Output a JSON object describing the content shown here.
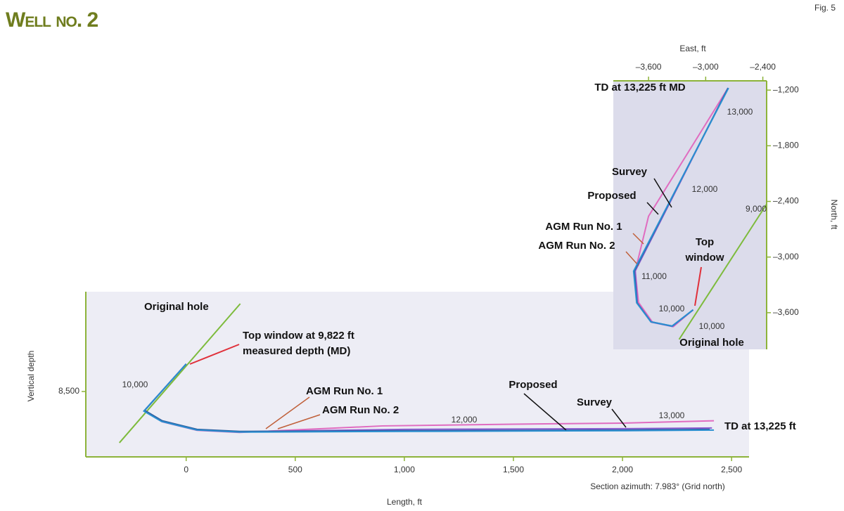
{
  "title": "Well no. 2",
  "figure_label": "Fig. 5",
  "chart_data": [
    {
      "type": "line",
      "x_label": "Length, ft",
      "y_label": "Vertical depth",
      "note": "Section azimuth: 7.983° (Grid north)",
      "x_axis_position": "bottom",
      "y_axis_position": "left",
      "xlim": [
        -460,
        2580
      ],
      "ylim": [
        8690,
        8210
      ],
      "xticks": [
        0,
        500,
        {
          "value": 1000,
          "label": "1,000"
        },
        {
          "value": 1500,
          "label": "1,500"
        },
        {
          "value": 2000,
          "label": "2,000"
        },
        {
          "value": 2500,
          "label": "2,500"
        }
      ],
      "yticks": [
        {
          "value": 8500,
          "label": "8,500"
        }
      ],
      "series": [
        {
          "name": "Original hole",
          "color": "#7dbb3c",
          "x": [
            -306,
            248
          ],
          "values": [
            8649,
            8245
          ]
        },
        {
          "name": "AGM Run No. 1",
          "color": "#e06cc0",
          "x": [
            0,
            -192,
            -110,
            50,
            245,
            900,
            1500,
            2000,
            2419
          ],
          "values": [
            8420,
            8556,
            8588,
            8613,
            8619,
            8600,
            8595,
            8592,
            8585
          ]
        },
        {
          "name": "AGM Run No. 2",
          "color": "#8a5bd0",
          "x": [
            0,
            -191,
            -110,
            50,
            245,
            1000,
            2000,
            2410
          ],
          "values": [
            8420,
            8555,
            8586,
            8611,
            8617,
            8610,
            8608,
            8606
          ]
        },
        {
          "name": "Proposed",
          "color": "#2f5fa0",
          "x": [
            0,
            -190,
            -110,
            50,
            245,
            1000,
            2000,
            2400
          ],
          "values": [
            8420,
            8555,
            8585,
            8610,
            8616,
            8614,
            8612,
            8610
          ]
        },
        {
          "name": "Survey",
          "color": "#2a8fd0",
          "x": [
            0,
            -194,
            -113,
            48,
            242,
            1000,
            2000,
            2419
          ],
          "values": [
            8420,
            8557,
            8587,
            8612,
            8618,
            8616,
            8614,
            8612
          ]
        }
      ],
      "annotations": [
        "Top window at 9,822 ft",
        "measured depth (MD)",
        "TD at 13,225 ft",
        "10,000",
        "12,000",
        "13,000"
      ]
    },
    {
      "type": "line",
      "x_label": "East, ft",
      "y_label": "North, ft",
      "x_axis_position": "top",
      "y_axis_position": "right",
      "xlim": [
        -3970,
        -2360
      ],
      "ylim": [
        -3995,
        -1100
      ],
      "xticks": [
        {
          "value": -3600,
          "label": "–3,600"
        },
        {
          "value": -3000,
          "label": "–3,000"
        },
        {
          "value": -2400,
          "label": "–2,400"
        }
      ],
      "yticks": [
        {
          "value": -1200,
          "label": "–1,200"
        },
        {
          "value": -1800,
          "label": "–1,800"
        },
        {
          "value": -2400,
          "label": "–2,400"
        },
        {
          "value": -3000,
          "label": "–3,000"
        },
        {
          "value": -3600,
          "label": "–3,600"
        }
      ],
      "series": [
        {
          "name": "Original hole",
          "color": "#7dbb3c",
          "x": [
            -3279,
            -2360
          ],
          "values": [
            -3888,
            -2430
          ]
        },
        {
          "name": "AGM Run No. 1",
          "color": "#e06cc0",
          "x": [
            -2765,
            -3600,
            -3740,
            -3705,
            -3560,
            -3340,
            -3132
          ],
          "values": [
            -1177,
            -2560,
            -3152,
            -3490,
            -3700,
            -3750,
            -3569
          ]
        },
        {
          "name": "AGM Run No. 2",
          "color": "#8a5bd0",
          "x": [
            -2765,
            -3740,
            -3718,
            -3570,
            -3350,
            -3132
          ],
          "values": [
            -1177,
            -3150,
            -3495,
            -3702,
            -3748,
            -3569
          ]
        },
        {
          "name": "Proposed",
          "color": "#2f5fa0",
          "x": [
            -2765,
            -3750,
            -3721,
            -3574,
            -3353,
            -3132
          ],
          "values": [
            -1177,
            -3152,
            -3493,
            -3698,
            -3744,
            -3569
          ]
        },
        {
          "name": "Survey",
          "color": "#2a8fd0",
          "x": [
            -2760,
            -3757,
            -3725,
            -3576,
            -3353,
            -3132
          ],
          "values": [
            -1177,
            -3152,
            -3493,
            -3698,
            -3744,
            -3569
          ]
        }
      ],
      "annotations": [
        "TD at 13,225 ft MD",
        "Top",
        "window",
        "13,000",
        "12,000",
        "11,000",
        "10,000",
        "9,000",
        "10,000"
      ]
    }
  ]
}
